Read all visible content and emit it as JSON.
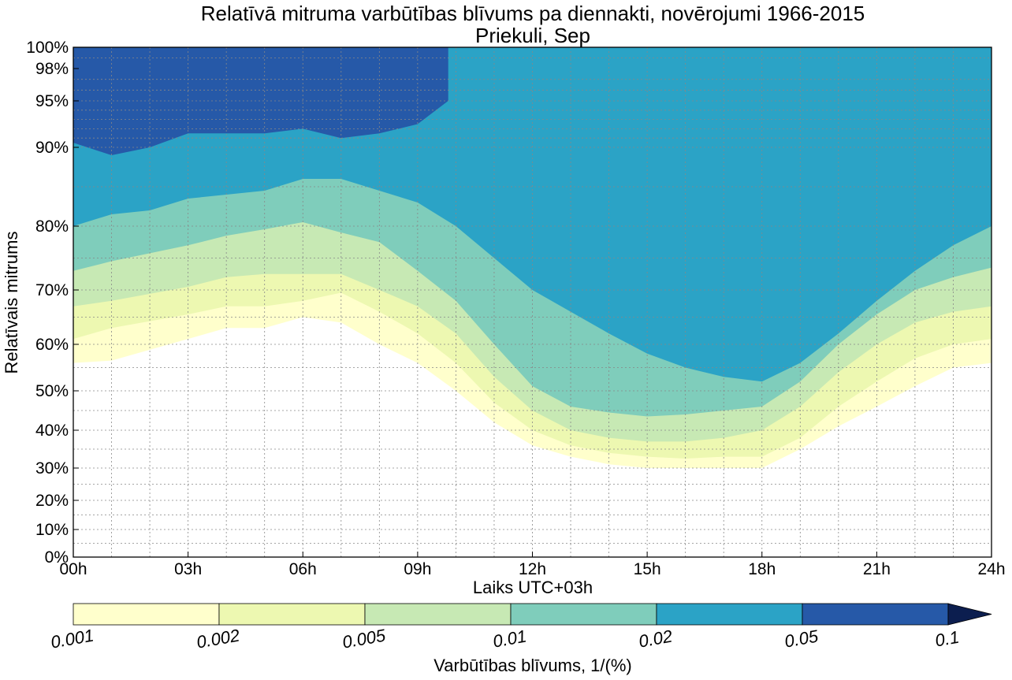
{
  "chart_data": {
    "type": "filled-contour",
    "title": "Relatīvā mitruma varbūtības blīvums pa diennakti, novērojumi 1966-2015",
    "subtitle": "Priekuli, Sep",
    "xlabel": "Laiks UTC+03h",
    "ylabel": "Relatīvais mitrums",
    "x_ticks": [
      "00h",
      "03h",
      "06h",
      "09h",
      "12h",
      "15h",
      "18h",
      "21h",
      "24h"
    ],
    "x_tick_values": [
      0,
      3,
      6,
      9,
      12,
      15,
      18,
      21,
      24
    ],
    "xlim": [
      0,
      24
    ],
    "y_ticks": [
      "0%",
      "10%",
      "20%",
      "30%",
      "40%",
      "50%",
      "60%",
      "70%",
      "80%",
      "90%",
      "95%",
      "98%",
      "100%"
    ],
    "y_tick_values": [
      0,
      10,
      20,
      30,
      40,
      50,
      60,
      70,
      80,
      90,
      95,
      98,
      100
    ],
    "ylim": [
      0,
      100
    ],
    "y_scale": "nonlinear (expanded toward 100%)",
    "grid": true,
    "colorbar": {
      "label": "Varbūtības blīvums, 1/(%)",
      "levels": [
        "0.001",
        "0.002",
        "0.005",
        "0.01",
        "0.02",
        "0.05",
        "0.1"
      ],
      "colors": [
        "#ffffcc",
        "#edf8b1",
        "#c7e9b4",
        "#7fcdbb",
        "#2ba3c6",
        "#2659a8",
        "#0c1e4f"
      ],
      "extend": "max",
      "position": "bottom"
    },
    "contour_boundaries": [
      {
        "level": "0.001",
        "x": [
          0,
          1,
          3,
          4,
          5,
          6,
          7,
          8,
          9,
          10,
          11,
          12,
          13,
          14,
          15,
          16,
          17,
          18,
          19,
          20,
          21,
          22,
          23,
          24
        ],
        "y": [
          56,
          56.5,
          61,
          63,
          63,
          65,
          64,
          60,
          56,
          50,
          42,
          36,
          33,
          31,
          30,
          30,
          30,
          30,
          35,
          41,
          46,
          51,
          55,
          56
        ]
      },
      {
        "level": "0.002",
        "x": [
          0,
          1,
          3,
          4,
          5,
          6,
          7,
          8,
          9,
          10,
          11,
          12,
          13,
          14,
          15,
          16,
          17,
          18,
          19,
          20,
          21,
          22,
          23,
          24
        ],
        "y": [
          61,
          63,
          65.5,
          67,
          67,
          68,
          69.5,
          66,
          62,
          56,
          47,
          40,
          36,
          34,
          33,
          32.5,
          33,
          33,
          38,
          46,
          52,
          57,
          60,
          61
        ]
      },
      {
        "level": "0.005",
        "x": [
          0,
          1,
          3,
          4,
          5,
          6,
          7,
          8,
          9,
          10,
          11,
          12,
          13,
          14,
          15,
          16,
          17,
          18,
          19,
          20,
          21,
          22,
          23,
          24
        ],
        "y": [
          67,
          68,
          70.5,
          72,
          72.5,
          72.5,
          72.5,
          70,
          67,
          62,
          53,
          45,
          40,
          38,
          37,
          37,
          38,
          40,
          46,
          54,
          60,
          64,
          66,
          67
        ]
      },
      {
        "level": "0.01",
        "x": [
          0,
          1,
          3,
          4,
          5,
          6,
          7,
          8,
          9,
          10,
          11,
          12,
          13,
          14,
          15,
          16,
          17,
          18,
          19,
          20,
          21,
          22,
          23,
          24
        ],
        "y": [
          73,
          74.5,
          77,
          78.5,
          79.5,
          80.5,
          79,
          77.5,
          73,
          68,
          60,
          51,
          46,
          44.5,
          43.5,
          44,
          45,
          46,
          52,
          60,
          65.5,
          70,
          72,
          73.5
        ]
      },
      {
        "level": "0.02",
        "x": [
          0,
          1,
          2,
          3,
          4,
          5,
          6,
          7,
          8,
          9,
          10,
          11,
          12,
          13,
          14,
          15,
          16,
          17,
          18,
          19,
          20,
          21,
          22,
          23,
          24
        ],
        "y": [
          80,
          81.5,
          82,
          83.5,
          84,
          84.5,
          86,
          86,
          84.5,
          83,
          80,
          75,
          70,
          66,
          62,
          58,
          55,
          53,
          52,
          56,
          62,
          68,
          73,
          77,
          80
        ]
      },
      {
        "level": "0.05",
        "x": [
          0,
          1,
          2,
          3,
          4,
          5,
          6,
          7,
          8,
          9,
          9.8
        ],
        "y": [
          90.5,
          89,
          90,
          91.5,
          91.5,
          91.5,
          92,
          91,
          91.5,
          92.5,
          95
        ]
      }
    ]
  }
}
